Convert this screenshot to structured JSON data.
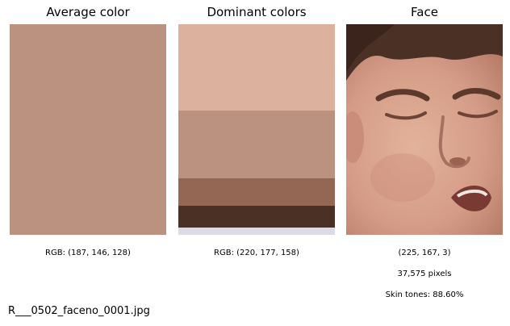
{
  "titles": {
    "average": "Average color",
    "dominant": "Dominant colors",
    "face": "Face"
  },
  "average": {
    "color": "#bb9280",
    "rgb_label": "RGB: (187, 146, 128)"
  },
  "dominant": {
    "rgb_label": "RGB: (220, 177, 158)",
    "bands": [
      {
        "color": "#dcb19e",
        "share": 0.41
      },
      {
        "color": "#bb9280",
        "share": 0.32
      },
      {
        "color": "#946755",
        "share": 0.13
      },
      {
        "color": "#4b3025",
        "share": 0.105
      },
      {
        "color": "#dcdae2",
        "share": 0.035
      }
    ]
  },
  "face": {
    "rgb_label": "(225, 167, 3)",
    "pixels_label": "37,575 pixels",
    "skin_label": "Skin tones: 88.60%"
  },
  "filename": "R___0502_faceno_0001.jpg"
}
